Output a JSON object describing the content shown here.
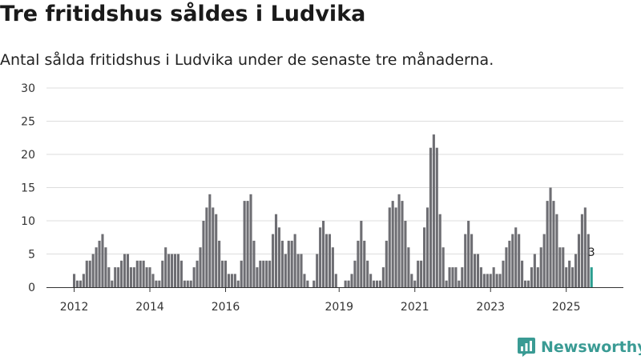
{
  "header": {
    "title": "Tre fritidshus såldes i Ludvika",
    "subtitle": "Antal sålda fritidshus i Ludvika under de senaste tre månaderna."
  },
  "brand": {
    "name": "Newsworthy"
  },
  "colors": {
    "bar": "#6e6e73",
    "highlight": "#2a9d8f",
    "grid": "#dddddd",
    "brand": "#3a9b94"
  },
  "chart_data": {
    "type": "bar",
    "title": "Tre fritidshus såldes i Ludvika",
    "subtitle": "Antal sålda fritidshus i Ludvika under de senaste tre månaderna.",
    "xlabel": "",
    "ylabel": "",
    "ylim": [
      0,
      30
    ],
    "yticks": [
      0,
      5,
      10,
      15,
      20,
      25,
      30
    ],
    "grid": true,
    "start": "2012-01",
    "xticks": [
      {
        "label": "2012",
        "index": 0
      },
      {
        "label": "2014",
        "index": 24
      },
      {
        "label": "2016",
        "index": 48
      },
      {
        "label": "2019",
        "index": 84
      },
      {
        "label": "2021",
        "index": 108
      },
      {
        "label": "2023",
        "index": 132
      },
      {
        "label": "2025",
        "index": 156
      }
    ],
    "values": [
      2,
      1,
      1,
      2,
      4,
      4,
      5,
      6,
      7,
      8,
      6,
      3,
      1,
      3,
      3,
      4,
      5,
      5,
      3,
      3,
      4,
      4,
      4,
      3,
      3,
      2,
      1,
      1,
      4,
      6,
      5,
      5,
      5,
      5,
      4,
      1,
      1,
      1,
      3,
      4,
      6,
      10,
      12,
      14,
      12,
      11,
      7,
      4,
      4,
      2,
      2,
      2,
      1,
      4,
      13,
      13,
      14,
      7,
      3,
      4,
      4,
      4,
      4,
      8,
      11,
      9,
      7,
      5,
      7,
      7,
      8,
      5,
      5,
      2,
      1,
      0,
      1,
      5,
      9,
      10,
      8,
      8,
      6,
      2,
      0,
      0,
      1,
      1,
      2,
      4,
      7,
      10,
      7,
      4,
      2,
      1,
      1,
      1,
      3,
      7,
      12,
      13,
      12,
      14,
      13,
      10,
      6,
      2,
      1,
      4,
      4,
      9,
      12,
      21,
      23,
      21,
      11,
      6,
      1,
      3,
      3,
      3,
      1,
      3,
      8,
      10,
      8,
      5,
      5,
      3,
      2,
      2,
      2,
      3,
      2,
      2,
      4,
      6,
      7,
      8,
      9,
      8,
      4,
      1,
      1,
      3,
      5,
      3,
      6,
      8,
      13,
      15,
      13,
      11,
      6,
      6,
      3,
      4,
      3,
      5,
      8,
      11,
      12,
      8,
      3
    ],
    "highlight_last": 1,
    "last_label": "3"
  }
}
